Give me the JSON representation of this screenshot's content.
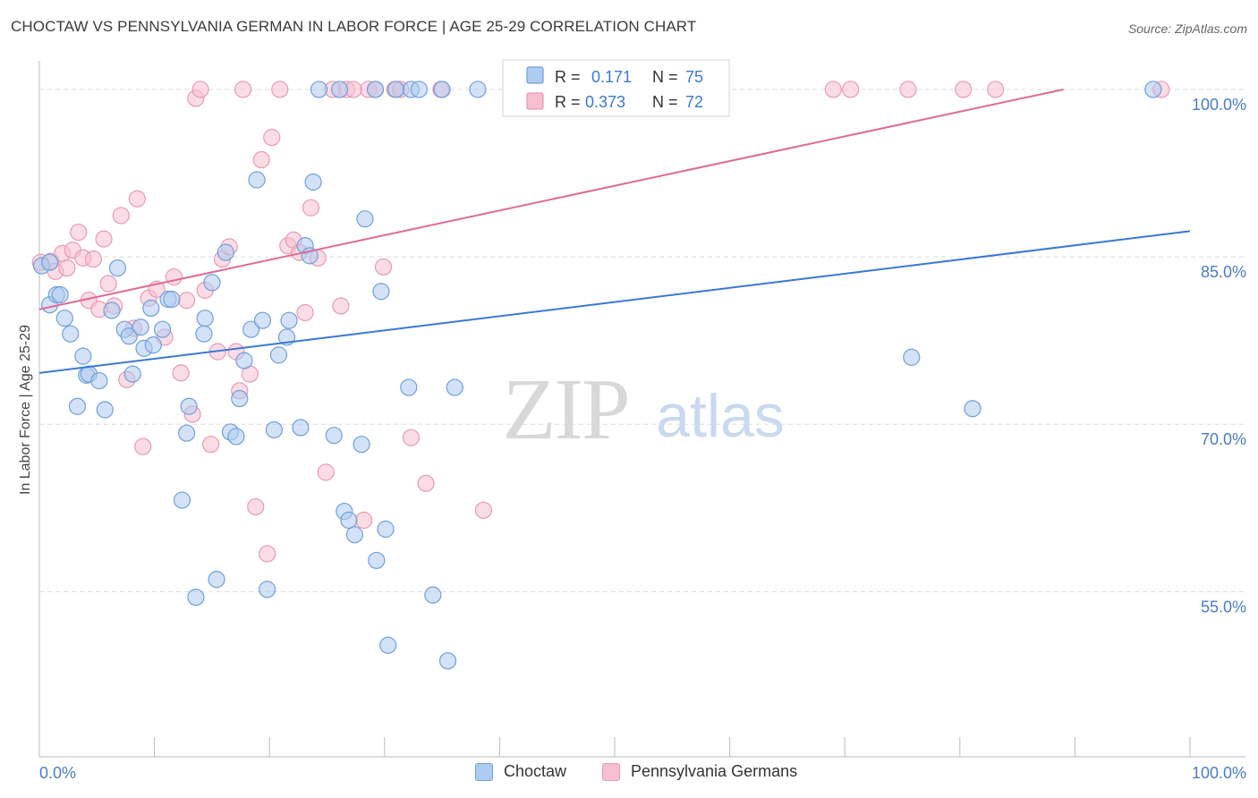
{
  "title": "CHOCTAW VS PENNSYLVANIA GERMAN IN LABOR FORCE | AGE 25-29 CORRELATION CHART",
  "source": "Source: ZipAtlas.com",
  "watermark": {
    "zip": "ZIP",
    "atlas": "atlas"
  },
  "colors": {
    "choctaw_fill": "#aecbf0",
    "choctaw_stroke": "#6f9fdb",
    "choctaw_line": "#3a78d4",
    "pg_fill": "#f7bfd0",
    "pg_stroke": "#e89ab3",
    "pg_line": "#e06a93",
    "tick_label": "#4a7bc8",
    "grid": "#dddddd"
  },
  "legend": {
    "rows": [
      {
        "r_label": "R =",
        "r_value": "0.171",
        "n_label": "N =",
        "n_value": "75"
      },
      {
        "r_label": "R =",
        "r_value": "0.373",
        "n_label": "N =",
        "n_value": "72"
      }
    ]
  },
  "bottom_legend": {
    "choctaw": "Choctaw",
    "pg": "Pennsylvania Germans"
  },
  "chart_data": {
    "type": "scatter",
    "title": "CHOCTAW VS PENNSYLVANIA GERMAN IN LABOR FORCE | AGE 25-29 CORRELATION CHART",
    "xlabel": "",
    "ylabel": "In Labor Force | Age 25-29",
    "xlim": [
      0,
      100
    ],
    "ylim": [
      40.2,
      101.6
    ],
    "x_tick_labels": [
      "0.0%",
      "100.0%"
    ],
    "y_ticks": [
      55,
      70,
      85,
      100
    ],
    "y_tick_labels": [
      "55.0%",
      "70.0%",
      "85.0%",
      "100.0%"
    ],
    "grid": true,
    "legend_position": "top-center",
    "series": [
      {
        "name": "Choctaw",
        "r": 0.171,
        "n": 75,
        "trend": {
          "x": [
            0,
            100
          ],
          "y": [
            74.6,
            87.3
          ]
        },
        "points": [
          [
            0.2,
            84.2
          ],
          [
            0.9,
            84.5
          ],
          [
            0.9,
            80.7
          ],
          [
            1.5,
            81.6
          ],
          [
            1.8,
            81.6
          ],
          [
            2.2,
            79.5
          ],
          [
            2.7,
            78.1
          ],
          [
            3.3,
            71.6
          ],
          [
            3.8,
            76.1
          ],
          [
            4.1,
            74.4
          ],
          [
            4.3,
            74.5
          ],
          [
            5.2,
            73.9
          ],
          [
            5.7,
            71.3
          ],
          [
            6.3,
            80.2
          ],
          [
            6.8,
            84.0
          ],
          [
            7.4,
            78.5
          ],
          [
            7.8,
            77.9
          ],
          [
            8.1,
            74.5
          ],
          [
            8.8,
            78.7
          ],
          [
            9.1,
            76.8
          ],
          [
            9.7,
            80.4
          ],
          [
            9.9,
            77.1
          ],
          [
            10.7,
            78.5
          ],
          [
            11.2,
            81.2
          ],
          [
            11.5,
            81.2
          ],
          [
            12.4,
            63.2
          ],
          [
            12.8,
            69.2
          ],
          [
            13.0,
            71.6
          ],
          [
            13.6,
            54.5
          ],
          [
            14.3,
            78.1
          ],
          [
            14.4,
            79.5
          ],
          [
            15.0,
            82.7
          ],
          [
            15.4,
            56.1
          ],
          [
            16.2,
            85.4
          ],
          [
            16.6,
            69.3
          ],
          [
            17.1,
            68.9
          ],
          [
            17.4,
            72.3
          ],
          [
            17.8,
            75.7
          ],
          [
            18.4,
            78.5
          ],
          [
            18.9,
            91.9
          ],
          [
            19.4,
            79.3
          ],
          [
            19.8,
            55.2
          ],
          [
            20.4,
            69.5
          ],
          [
            20.8,
            76.2
          ],
          [
            21.5,
            77.8
          ],
          [
            21.7,
            79.3
          ],
          [
            22.7,
            69.7
          ],
          [
            23.1,
            86.0
          ],
          [
            23.5,
            85.1
          ],
          [
            23.8,
            91.7
          ],
          [
            24.3,
            100
          ],
          [
            25.6,
            69.0
          ],
          [
            26.1,
            100
          ],
          [
            26.5,
            62.2
          ],
          [
            26.9,
            61.4
          ],
          [
            27.4,
            60.1
          ],
          [
            28.0,
            68.2
          ],
          [
            28.3,
            88.4
          ],
          [
            29.2,
            100
          ],
          [
            29.3,
            57.8
          ],
          [
            29.7,
            81.9
          ],
          [
            30.1,
            60.6
          ],
          [
            30.3,
            50.2
          ],
          [
            31.0,
            100
          ],
          [
            32.1,
            73.3
          ],
          [
            32.3,
            100
          ],
          [
            33.0,
            100
          ],
          [
            34.2,
            54.7
          ],
          [
            35.0,
            100
          ],
          [
            35.5,
            48.8
          ],
          [
            36.1,
            73.3
          ],
          [
            38.1,
            100
          ],
          [
            75.8,
            76.0
          ],
          [
            81.1,
            71.4
          ],
          [
            96.8,
            100
          ]
        ]
      },
      {
        "name": "Pennsylvania Germans",
        "r": 0.373,
        "n": 72,
        "trend": {
          "x": [
            0,
            89
          ],
          "y": [
            80.3,
            100.0
          ]
        },
        "points": [
          [
            0.1,
            84.5
          ],
          [
            1.0,
            84.6
          ],
          [
            1.4,
            83.7
          ],
          [
            2.0,
            85.3
          ],
          [
            2.4,
            84.0
          ],
          [
            2.9,
            85.6
          ],
          [
            3.4,
            87.2
          ],
          [
            3.8,
            84.9
          ],
          [
            4.3,
            81.1
          ],
          [
            4.7,
            84.8
          ],
          [
            5.2,
            80.3
          ],
          [
            5.6,
            86.6
          ],
          [
            6.0,
            82.6
          ],
          [
            6.5,
            80.6
          ],
          [
            7.1,
            88.7
          ],
          [
            7.6,
            74.0
          ],
          [
            8.2,
            78.6
          ],
          [
            8.5,
            90.2
          ],
          [
            9.0,
            68.0
          ],
          [
            9.5,
            81.3
          ],
          [
            10.2,
            82.1
          ],
          [
            10.9,
            77.8
          ],
          [
            11.7,
            83.2
          ],
          [
            12.3,
            74.6
          ],
          [
            12.8,
            81.1
          ],
          [
            13.3,
            70.9
          ],
          [
            13.6,
            99.2
          ],
          [
            14.0,
            100
          ],
          [
            14.4,
            82.0
          ],
          [
            14.9,
            68.2
          ],
          [
            15.5,
            76.5
          ],
          [
            15.9,
            84.8
          ],
          [
            16.5,
            85.9
          ],
          [
            17.1,
            76.5
          ],
          [
            17.4,
            73.0
          ],
          [
            17.7,
            100
          ],
          [
            18.3,
            74.5
          ],
          [
            18.8,
            62.6
          ],
          [
            19.3,
            93.7
          ],
          [
            19.8,
            58.4
          ],
          [
            20.2,
            95.7
          ],
          [
            20.9,
            100
          ],
          [
            21.6,
            86.0
          ],
          [
            22.1,
            86.5
          ],
          [
            22.6,
            85.4
          ],
          [
            23.1,
            80.0
          ],
          [
            23.6,
            89.4
          ],
          [
            24.2,
            84.9
          ],
          [
            24.9,
            65.7
          ],
          [
            25.5,
            100
          ],
          [
            26.2,
            80.6
          ],
          [
            26.7,
            100
          ],
          [
            27.3,
            100
          ],
          [
            28.2,
            61.4
          ],
          [
            28.6,
            100
          ],
          [
            29.2,
            100
          ],
          [
            29.9,
            84.1
          ],
          [
            30.9,
            100
          ],
          [
            31.4,
            100
          ],
          [
            32.3,
            68.8
          ],
          [
            33.6,
            64.7
          ],
          [
            34.9,
            100
          ],
          [
            38.6,
            62.3
          ],
          [
            41.1,
            100
          ],
          [
            50.3,
            100
          ],
          [
            56.9,
            100
          ],
          [
            69.0,
            100
          ],
          [
            70.5,
            100
          ],
          [
            75.5,
            100
          ],
          [
            80.3,
            100
          ],
          [
            83.1,
            100
          ],
          [
            97.5,
            100
          ]
        ]
      }
    ]
  }
}
